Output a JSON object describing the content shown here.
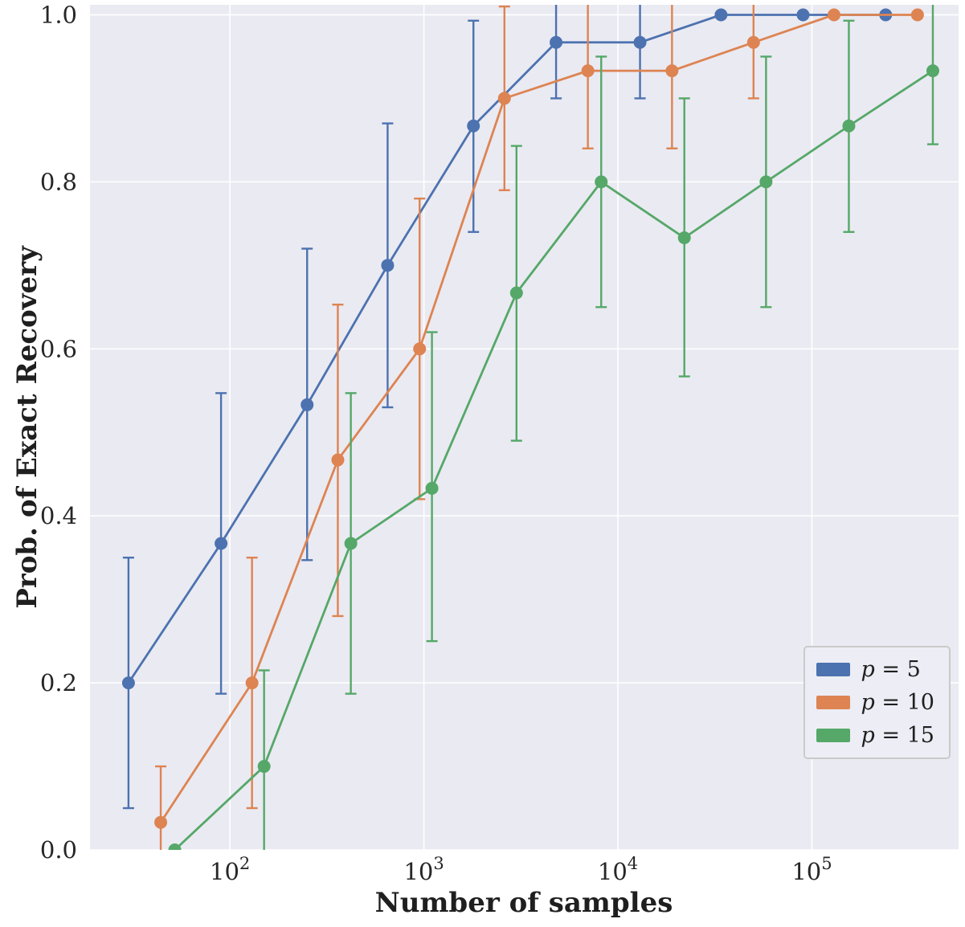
{
  "figure": {
    "background": "#ffffff",
    "axes_background": "#eaeaf2",
    "grid_color": "#ffffff",
    "text_color": "#262626",
    "legend_background": "#ecedf5",
    "legend_border": "#cacaca"
  },
  "chart_data": {
    "type": "line",
    "title": "",
    "xlabel": "Number of samples",
    "ylabel": "Prob. of Exact Recovery",
    "x_scale": "log",
    "xlim": [
      19,
      570000
    ],
    "ylim": [
      0,
      1.012
    ],
    "x_ticks": [
      100,
      1000,
      10000,
      100000
    ],
    "x_tick_labels": [
      "10^2",
      "10^3",
      "10^4",
      "10^5"
    ],
    "y_ticks": [
      0.0,
      0.2,
      0.4,
      0.6,
      0.8,
      1.0
    ],
    "y_tick_labels": [
      "0.0",
      "0.2",
      "0.4",
      "0.6",
      "0.8",
      "1.0"
    ],
    "grid": true,
    "legend_position": "lower right",
    "series": [
      {
        "name": "p = 5",
        "color": "#4c72b0",
        "x": [
          30,
          90,
          250,
          650,
          1800,
          4800,
          13000,
          34000,
          90000,
          240000
        ],
        "y": [
          0.2,
          0.367,
          0.533,
          0.7,
          0.867,
          0.967,
          0.967,
          1.0,
          1.0,
          1.0
        ],
        "err_low": [
          0.05,
          0.187,
          0.347,
          0.53,
          0.74,
          0.9,
          0.9,
          1.0,
          1.0,
          1.0
        ],
        "err_high": [
          0.35,
          0.547,
          0.72,
          0.87,
          0.993,
          1.033,
          1.033,
          1.0,
          1.0,
          1.0
        ]
      },
      {
        "name": "p = 10",
        "color": "#dd8452",
        "x": [
          44,
          130,
          360,
          950,
          2600,
          7000,
          19000,
          50000,
          130000,
          350000
        ],
        "y": [
          0.033,
          0.2,
          0.467,
          0.6,
          0.9,
          0.933,
          0.933,
          0.967,
          1.0,
          1.0
        ],
        "err_low": [
          -0.033,
          0.05,
          0.28,
          0.42,
          0.79,
          0.84,
          0.84,
          0.9,
          1.0,
          1.0
        ],
        "err_high": [
          0.1,
          0.35,
          0.653,
          0.78,
          1.01,
          1.027,
          1.027,
          1.033,
          1.0,
          1.0
        ]
      },
      {
        "name": "p = 15",
        "color": "#55a868",
        "x": [
          52,
          150,
          420,
          1100,
          3000,
          8200,
          22000,
          58000,
          155000,
          420000
        ],
        "y": [
          0.0,
          0.1,
          0.367,
          0.433,
          0.667,
          0.8,
          0.733,
          0.8,
          0.867,
          0.933
        ],
        "err_low": [
          0.0,
          -0.015,
          0.187,
          0.25,
          0.49,
          0.65,
          0.567,
          0.65,
          0.74,
          0.845
        ],
        "err_high": [
          0.0,
          0.215,
          0.547,
          0.62,
          0.843,
          0.95,
          0.9,
          0.95,
          0.993,
          1.02
        ]
      }
    ]
  }
}
